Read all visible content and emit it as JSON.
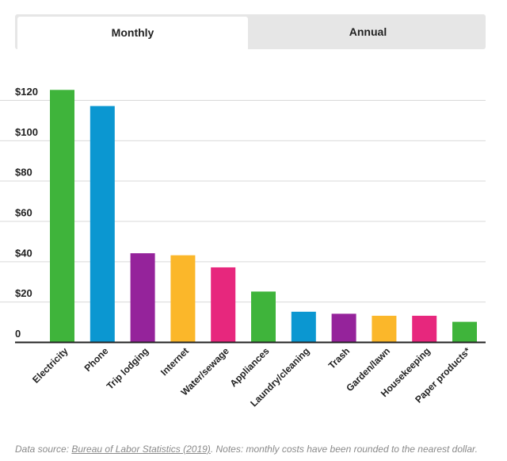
{
  "tabs": {
    "monthly": "Monthly",
    "annual": "Annual",
    "active": "monthly"
  },
  "chart_data": {
    "type": "bar",
    "categories": [
      "Electricity",
      "Phone",
      "Trip lodging",
      "Internet",
      "Water/sewage",
      "Appliances",
      "Laundry/cleaning",
      "Trash",
      "Garden/lawn",
      "Housekeeping",
      "Paper products*"
    ],
    "values": [
      125,
      117,
      44,
      43,
      37,
      25,
      15,
      14,
      13,
      13,
      10
    ],
    "colors": [
      "#3fb43b",
      "#0b97d1",
      "#95239b",
      "#fbb72a",
      "#e7277d",
      "#3fb43b",
      "#0b97d1",
      "#95239b",
      "#fbb72a",
      "#e7277d",
      "#3fb43b"
    ],
    "ylim": [
      0,
      120
    ],
    "yticks": [
      0,
      20,
      40,
      60,
      80,
      100,
      120
    ],
    "ytick_labels": [
      "0",
      "$20",
      "$40",
      "$60",
      "$80",
      "$100",
      "$120"
    ],
    "grid": true,
    "title": "",
    "xlabel": "",
    "ylabel": ""
  },
  "footnote": {
    "prefix": "Data source: ",
    "link": "Bureau of Labor Statistics (2019)",
    "suffix": ". Notes: monthly costs have been rounded to the nearest dollar."
  }
}
